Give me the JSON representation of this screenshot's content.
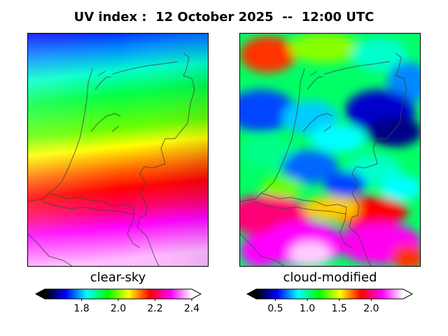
{
  "title": "UV index :  12 October 2025  --  12:00 UTC",
  "panels": [
    {
      "label": "clear-sky",
      "colorbar": {
        "min": 1.6,
        "max": 2.4,
        "ticks": [
          1.8,
          2.0,
          2.2,
          2.4
        ],
        "tick_labels": [
          "1.8",
          "2.0",
          "2.2",
          "2.4"
        ],
        "extend": "both"
      }
    },
    {
      "label": "cloud-modified",
      "colorbar": {
        "min": 0.2,
        "max": 2.5,
        "ticks": [
          0.5,
          1.0,
          1.5,
          2.0
        ],
        "tick_labels": [
          "0.5",
          "1.0",
          "1.5",
          "2.0"
        ],
        "extend": "both"
      }
    }
  ],
  "colormap": [
    "#000000",
    "#0000ff",
    "#00ffff",
    "#00ff00",
    "#ffff00",
    "#ff0000",
    "#ff00ff",
    "#ffffff"
  ],
  "colormap_name": "gist-ncar-like"
}
